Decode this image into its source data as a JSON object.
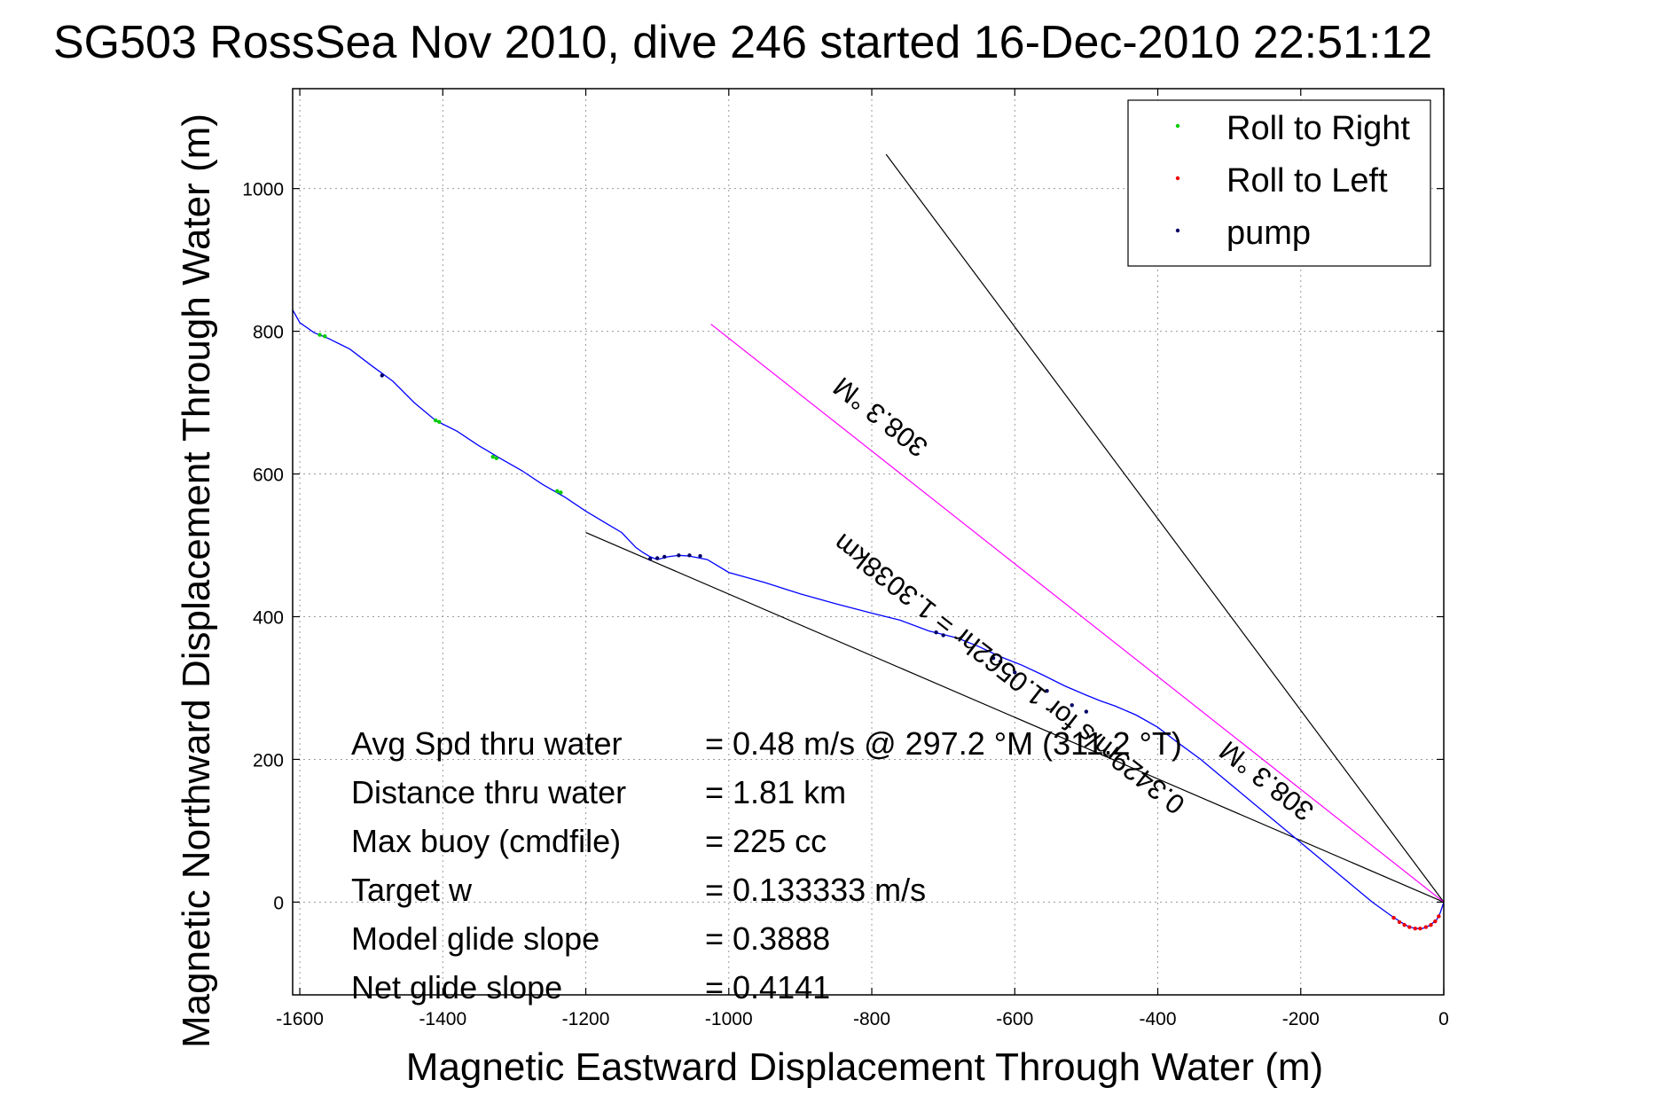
{
  "chart_data": {
    "type": "line",
    "title": "SG503 RossSea Nov 2010, dive 246 started 16-Dec-2010 22:51:12",
    "xlabel": "Magnetic Eastward Displacement Through Water (m)",
    "ylabel": "Magnetic Northward Displacement Through Water (m)",
    "xlim": [
      -1610,
      0
    ],
    "ylim": [
      -130,
      1140
    ],
    "x_ticks": [
      -1600,
      -1400,
      -1200,
      -1000,
      -800,
      -600,
      -400,
      -200,
      0
    ],
    "y_ticks": [
      0,
      200,
      400,
      600,
      800,
      1000
    ],
    "grid": true,
    "legend": {
      "placement": "top-right",
      "entries": [
        {
          "label": "Roll to Right",
          "color": "#00cc00",
          "marker": "dot"
        },
        {
          "label": "Roll to Left",
          "color": "#ee0000",
          "marker": "dot"
        },
        {
          "label": "pump",
          "color": "#000066",
          "marker": "dot"
        }
      ]
    },
    "series": [
      {
        "name": "track",
        "color": "#0000ff",
        "x": [
          0,
          -5,
          -10,
          -20,
          -30,
          -40,
          -50,
          -60,
          -75,
          -100,
          -130,
          -160,
          -190,
          -220,
          -250,
          -280,
          -310,
          -340,
          -370,
          -400,
          -430,
          -460,
          -480,
          -500,
          -530,
          -560,
          -590,
          -620,
          -650,
          -680,
          -700,
          -720,
          -760,
          -800,
          -850,
          -900,
          -950,
          -1000,
          -1030,
          -1055,
          -1070,
          -1085,
          -1100,
          -1110,
          -1120,
          -1130,
          -1150,
          -1170,
          -1200,
          -1230,
          -1260,
          -1290,
          -1320,
          -1350,
          -1380,
          -1410,
          -1440,
          -1470,
          -1500,
          -1530,
          -1560,
          -1580,
          -1600,
          -1610
        ],
        "y": [
          0,
          -15,
          -25,
          -33,
          -37,
          -37,
          -34,
          -28,
          -18,
          0,
          25,
          50,
          75,
          100,
          125,
          150,
          175,
          200,
          222,
          245,
          262,
          275,
          282,
          290,
          303,
          318,
          332,
          344,
          358,
          370,
          375,
          380,
          395,
          405,
          418,
          432,
          448,
          462,
          480,
          485,
          486,
          484,
          480,
          484,
          490,
          497,
          518,
          530,
          548,
          568,
          585,
          605,
          622,
          640,
          660,
          675,
          700,
          730,
          752,
          775,
          790,
          798,
          812,
          830
        ]
      },
      {
        "name": "Roll to Right",
        "color": "#00cc00",
        "type": "scatter",
        "x": [
          -1572,
          -1565,
          -1410,
          -1405,
          -1330,
          -1325,
          -1240,
          -1235
        ],
        "y": [
          795,
          793,
          675,
          673,
          624,
          622,
          576,
          574
        ]
      },
      {
        "name": "Roll to Left",
        "color": "#ee0000",
        "type": "scatter",
        "x": [
          -70,
          -62,
          -55,
          -48,
          -40,
          -33,
          -25,
          -18,
          -12,
          -7
        ],
        "y": [
          -22,
          -28,
          -32,
          -35,
          -37,
          -37,
          -35,
          -32,
          -27,
          -20
        ]
      },
      {
        "name": "pump",
        "color": "#000066",
        "type": "scatter",
        "x": [
          -1485,
          -1040,
          -1055,
          -1070,
          -1090,
          -1100,
          -1110,
          -710,
          -700,
          -630,
          -620,
          -600,
          -555,
          -520,
          -500
        ],
        "y": [
          738,
          485,
          486,
          486,
          484,
          482,
          481,
          378,
          374,
          342,
          337,
          322,
          296,
          276,
          267
        ]
      }
    ],
    "reference_lines": [
      {
        "name": "heading-line",
        "color": "#000000",
        "x": [
          0,
          -780
        ],
        "y": [
          0,
          1048
        ]
      },
      {
        "name": "net-glide-line",
        "color": "#000000",
        "x": [
          0,
          -1200
        ],
        "y": [
          0,
          518
        ]
      },
      {
        "name": "current-line",
        "color": "#ff00ff",
        "x": [
          0,
          -1025
        ],
        "y": [
          0,
          810
        ]
      }
    ],
    "annotations": [
      {
        "name": "heading-label-upper",
        "text": "308.3 °M",
        "x": -780,
        "y": 690,
        "rotation_deg": 218
      },
      {
        "name": "current-label",
        "text": "0.3429m/s for 1.0562hr = 1.3038km",
        "x": -600,
        "y": 330,
        "rotation_deg": 218
      },
      {
        "name": "heading-label-lower",
        "text": "308.3 °M",
        "x": -240,
        "y": 180,
        "rotation_deg": 218
      }
    ],
    "stats": [
      {
        "label": "Avg Spd thru water",
        "value": "=  0.48 m/s @ 297.2  °M (311.2 °T)"
      },
      {
        "label": "Distance thru water",
        "value": "=  1.81 km"
      },
      {
        "label": "Max buoy (cmdfile)",
        "value": "= 225 cc"
      },
      {
        "label": "Target w",
        "value": "= 0.133333 m/s"
      },
      {
        "label": "Model glide slope",
        "value": "= 0.3888"
      },
      {
        "label": "Net glide slope",
        "value": "= 0.4141"
      }
    ]
  }
}
